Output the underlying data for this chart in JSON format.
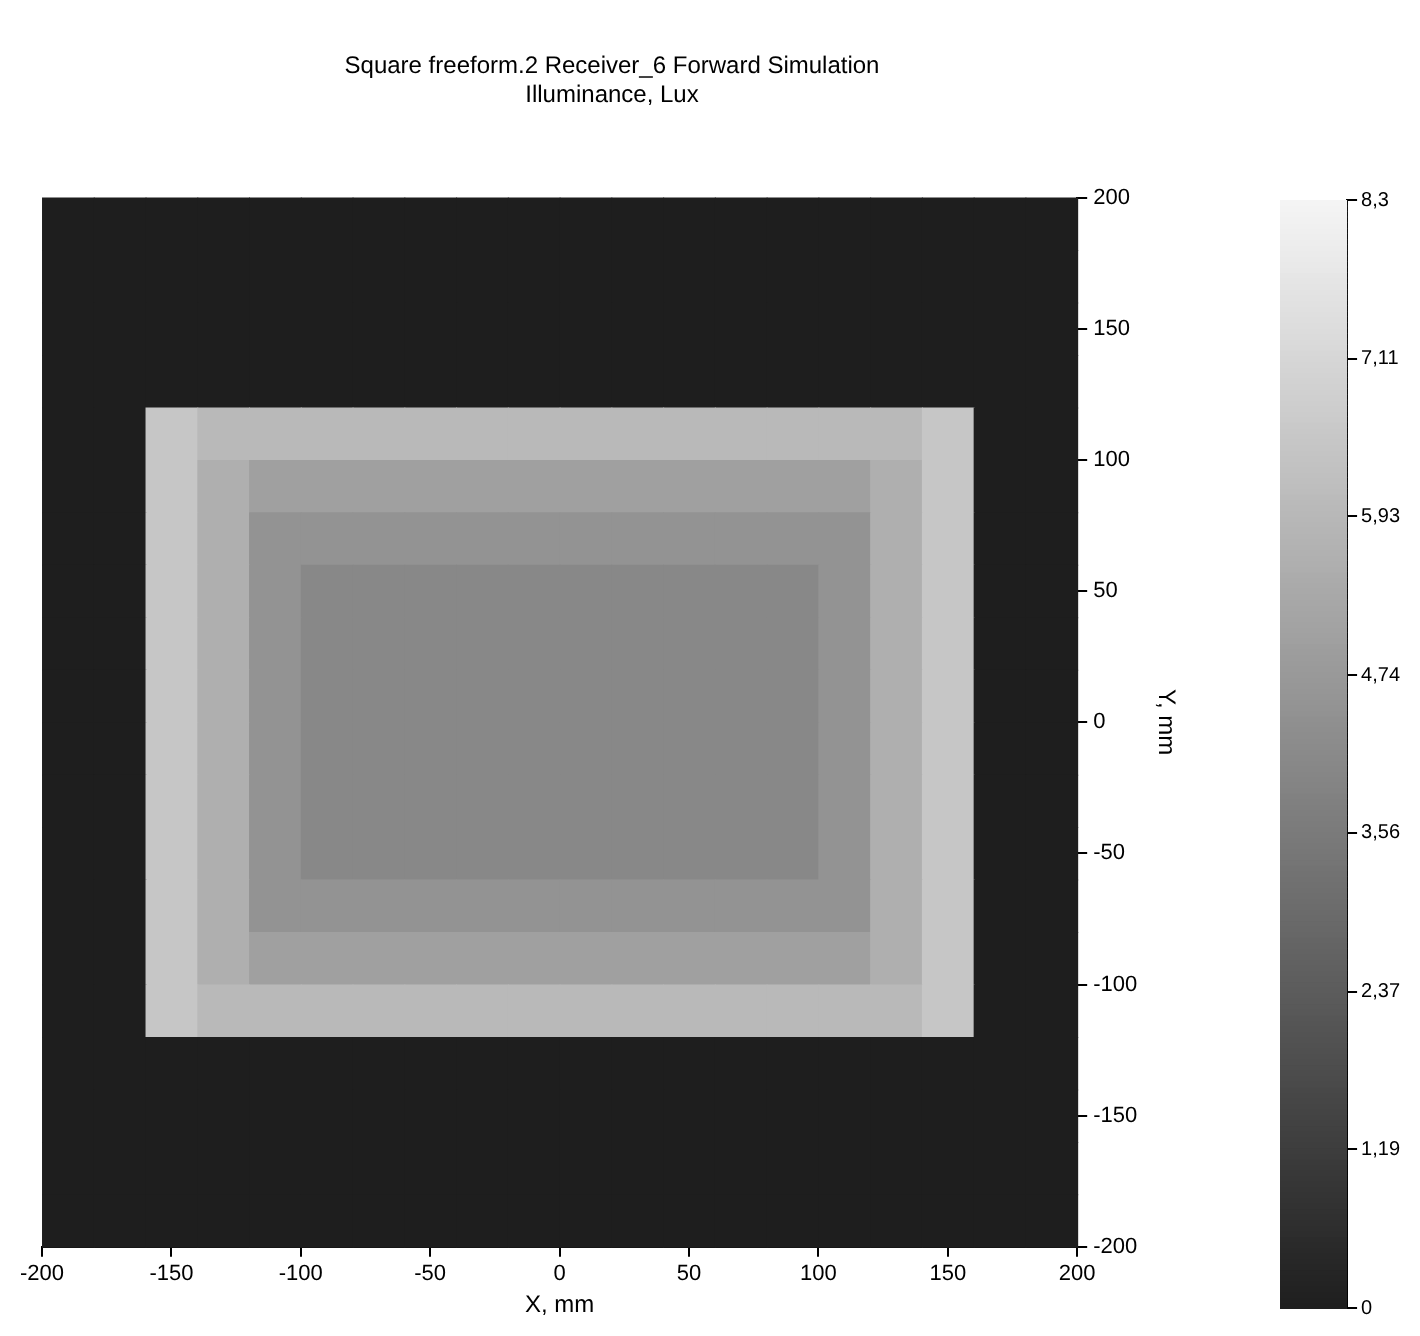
{
  "chart_data": {
    "type": "heatmap",
    "title": "Square freeform.2 Receiver_6 Forward Simulation",
    "subtitle": "Illuminance, Lux",
    "xlabel": "X, mm",
    "ylabel": "Y, mm",
    "xlim": [
      -200,
      200
    ],
    "ylim": [
      -200,
      200
    ],
    "xticks": [
      -200,
      -150,
      -100,
      -50,
      0,
      50,
      100,
      150,
      200
    ],
    "yticks": [
      -200,
      -150,
      -100,
      -50,
      0,
      50,
      100,
      150,
      200
    ],
    "clim": [
      0,
      8.3
    ],
    "cticks": [
      0,
      {
        "value": 1.19,
        "label": "1,19"
      },
      {
        "value": 2.37,
        "label": "2,37"
      },
      {
        "value": 3.56,
        "label": "3,56"
      },
      {
        "value": 4.74,
        "label": "4,74"
      },
      {
        "value": 5.93,
        "label": "5,93"
      },
      {
        "value": 7.11,
        "label": "7,11"
      },
      {
        "value": 8.3,
        "label": "8,3"
      }
    ],
    "cells": [
      [
        0,
        0,
        0,
        0,
        0,
        0,
        0,
        0,
        0,
        0,
        0,
        0,
        0,
        0,
        0,
        0,
        0,
        0,
        0,
        0
      ],
      [
        0,
        0,
        0,
        0,
        0,
        0,
        0,
        0,
        0,
        0,
        0,
        0,
        0,
        0,
        0,
        0,
        0,
        0,
        0,
        0
      ],
      [
        0,
        0,
        0,
        0,
        0,
        0,
        0,
        0,
        0,
        0,
        0,
        0,
        0,
        0,
        0,
        0,
        0,
        0,
        0,
        0
      ],
      [
        0,
        0,
        0,
        0,
        0,
        0,
        0,
        0,
        0,
        0,
        0,
        0,
        0,
        0,
        0,
        0,
        0,
        0,
        0,
        0
      ],
      [
        0,
        0,
        6.5,
        6.0,
        6.0,
        6.0,
        6.0,
        6.0,
        6.0,
        6.0,
        6.0,
        6.0,
        6.0,
        6.0,
        6.0,
        6.0,
        6.0,
        6.5,
        0,
        0
      ],
      [
        0,
        0,
        6.5,
        5.6,
        5.0,
        5.0,
        5.0,
        5.0,
        5.0,
        5.0,
        5.0,
        5.0,
        5.0,
        5.0,
        5.0,
        5.0,
        5.6,
        6.5,
        0,
        0
      ],
      [
        0,
        0,
        6.5,
        5.6,
        4.5,
        4.5,
        4.5,
        4.5,
        4.5,
        4.5,
        4.5,
        4.5,
        4.5,
        4.5,
        4.5,
        4.5,
        5.6,
        6.5,
        0,
        0
      ],
      [
        0,
        0,
        6.5,
        5.6,
        4.5,
        4.1,
        4.1,
        4.1,
        4.1,
        4.1,
        4.1,
        4.1,
        4.1,
        4.1,
        4.1,
        4.5,
        5.6,
        6.5,
        0,
        0
      ],
      [
        0,
        0,
        6.5,
        5.6,
        4.5,
        4.1,
        4.1,
        4.1,
        4.1,
        4.1,
        4.1,
        4.1,
        4.1,
        4.1,
        4.1,
        4.5,
        5.6,
        6.5,
        0,
        0
      ],
      [
        0,
        0,
        6.5,
        5.6,
        4.5,
        4.1,
        4.1,
        4.1,
        4.1,
        4.1,
        4.1,
        4.1,
        4.1,
        4.1,
        4.1,
        4.5,
        5.6,
        6.5,
        0,
        0
      ],
      [
        0,
        0,
        6.5,
        5.6,
        4.5,
        4.1,
        4.1,
        4.1,
        4.1,
        4.1,
        4.1,
        4.1,
        4.1,
        4.1,
        4.1,
        4.5,
        5.6,
        6.5,
        0,
        0
      ],
      [
        0,
        0,
        6.5,
        5.6,
        4.5,
        4.1,
        4.1,
        4.1,
        4.1,
        4.1,
        4.1,
        4.1,
        4.1,
        4.1,
        4.1,
        4.5,
        5.6,
        6.5,
        0,
        0
      ],
      [
        0,
        0,
        6.5,
        5.6,
        4.5,
        4.1,
        4.1,
        4.1,
        4.1,
        4.1,
        4.1,
        4.1,
        4.1,
        4.1,
        4.1,
        4.5,
        5.6,
        6.5,
        0,
        0
      ],
      [
        0,
        0,
        6.5,
        5.6,
        4.5,
        4.5,
        4.5,
        4.5,
        4.5,
        4.5,
        4.5,
        4.5,
        4.5,
        4.5,
        4.5,
        4.5,
        5.6,
        6.5,
        0,
        0
      ],
      [
        0,
        0,
        6.5,
        5.6,
        5.0,
        5.0,
        5.0,
        5.0,
        5.0,
        5.0,
        5.0,
        5.0,
        5.0,
        5.0,
        5.0,
        5.0,
        5.6,
        6.5,
        0,
        0
      ],
      [
        0,
        0,
        6.5,
        6.0,
        6.0,
        6.0,
        6.0,
        6.0,
        6.0,
        6.0,
        6.0,
        6.0,
        6.0,
        6.0,
        6.0,
        6.0,
        6.0,
        6.5,
        0,
        0
      ],
      [
        0,
        0,
        0,
        0,
        0,
        0,
        0,
        0,
        0,
        0,
        0,
        0,
        0,
        0,
        0,
        0,
        0,
        0,
        0,
        0
      ],
      [
        0,
        0,
        0,
        0,
        0,
        0,
        0,
        0,
        0,
        0,
        0,
        0,
        0,
        0,
        0,
        0,
        0,
        0,
        0,
        0
      ],
      [
        0,
        0,
        0,
        0,
        0,
        0,
        0,
        0,
        0,
        0,
        0,
        0,
        0,
        0,
        0,
        0,
        0,
        0,
        0,
        0
      ],
      [
        0,
        0,
        0,
        0,
        0,
        0,
        0,
        0,
        0,
        0,
        0,
        0,
        0,
        0,
        0,
        0,
        0,
        0,
        0,
        0
      ]
    ]
  }
}
